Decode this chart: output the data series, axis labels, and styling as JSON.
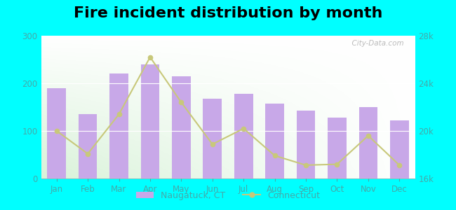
{
  "title": "Fire incident distribution by month",
  "months": [
    "Jan",
    "Feb",
    "Mar",
    "Apr",
    "May",
    "Jun",
    "Jul",
    "Aug",
    "Sep",
    "Oct",
    "Nov",
    "Dec"
  ],
  "naugatuck_values": [
    190,
    135,
    220,
    240,
    215,
    168,
    178,
    157,
    143,
    128,
    150,
    122
  ],
  "connecticut_values": [
    100,
    52,
    135,
    255,
    160,
    72,
    105,
    48,
    28,
    30,
    90,
    28
  ],
  "bar_color": "#c8a8e8",
  "line_color": "#c8c87a",
  "background_color": "#00ffff",
  "left_ylim": [
    0,
    300
  ],
  "left_yticks": [
    0,
    100,
    200,
    300
  ],
  "right_ylim": [
    16000,
    28000
  ],
  "right_yticks": [
    16000,
    20000,
    24000,
    28000
  ],
  "right_yticklabels": [
    "16k",
    "20k",
    "24k",
    "28k"
  ],
  "title_fontsize": 16,
  "tick_color": "#44aaaa",
  "watermark": "  City-Data.com"
}
